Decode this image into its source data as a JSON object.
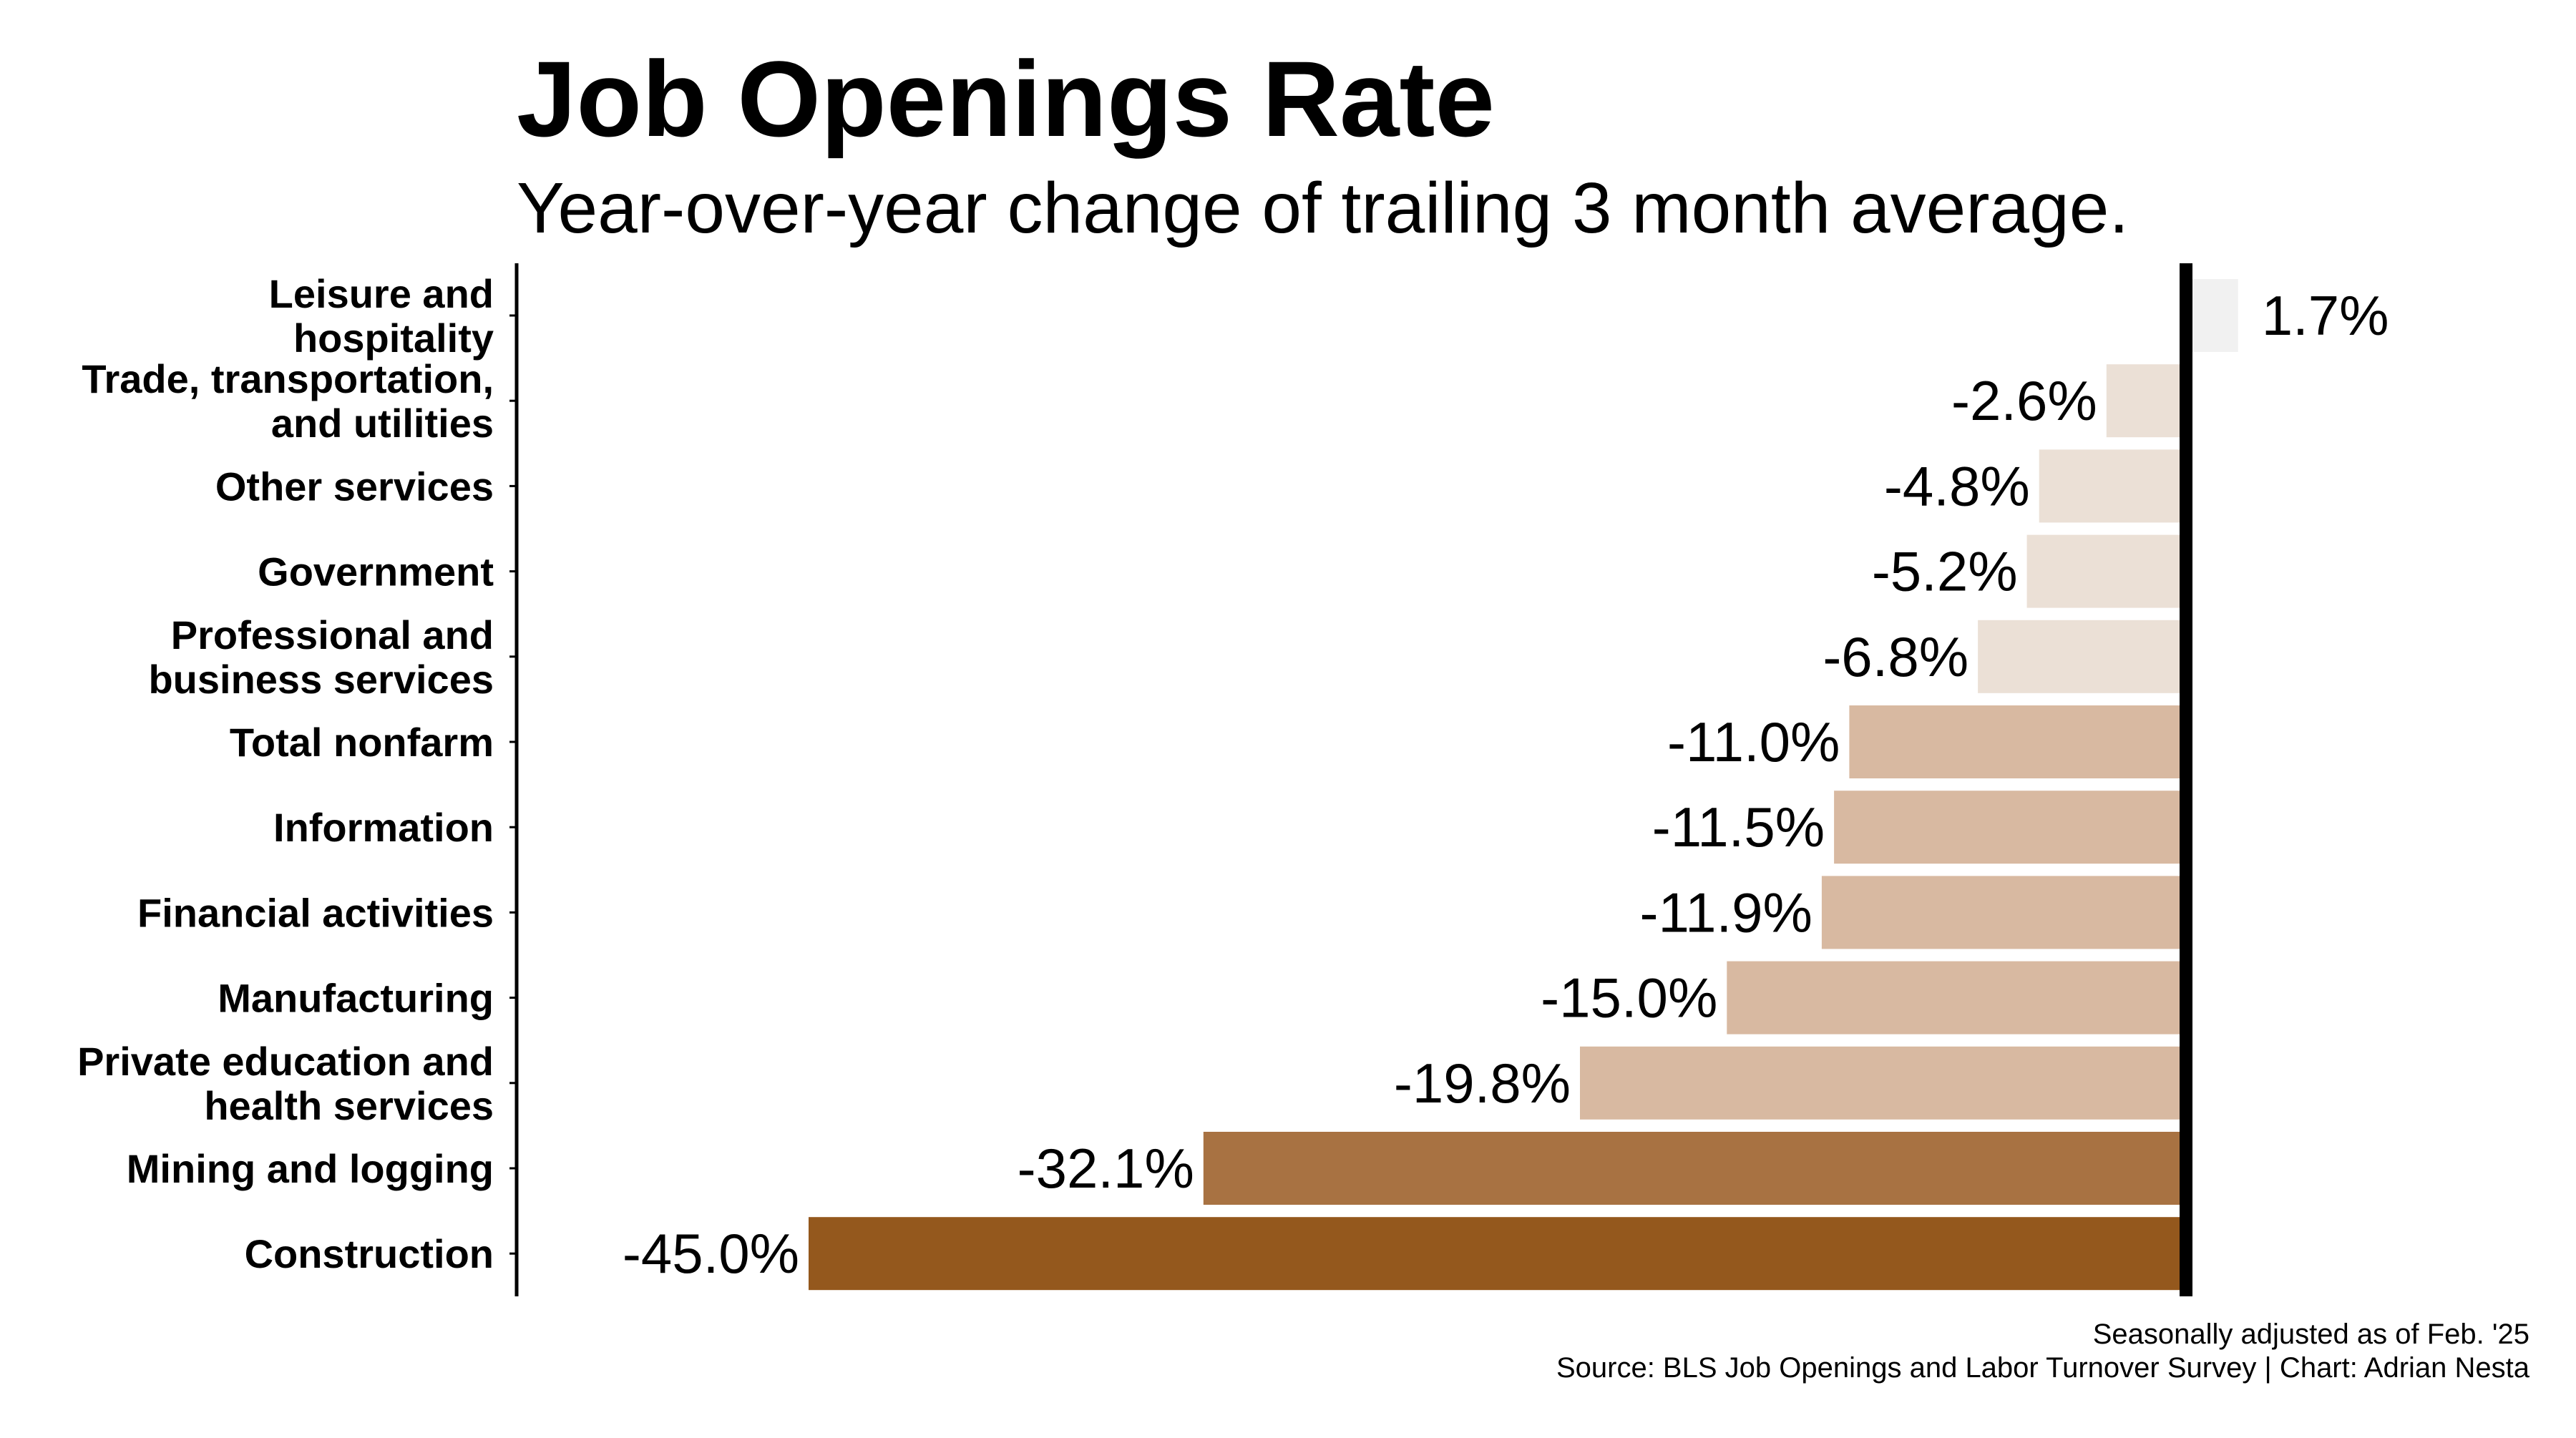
{
  "chart_data": {
    "type": "bar",
    "orientation": "horizontal",
    "title": "Job Openings Rate",
    "subtitle": "Year-over-year change of trailing 3 month average.",
    "categories": [
      [
        "Leisure and",
        "hospitality"
      ],
      [
        "Trade, transportation,",
        "and utilities"
      ],
      [
        "Other services"
      ],
      [
        "Government"
      ],
      [
        "Professional and",
        "business services"
      ],
      [
        "Total nonfarm"
      ],
      [
        "Information"
      ],
      [
        "Financial activities"
      ],
      [
        "Manufacturing"
      ],
      [
        "Private education and",
        "health services"
      ],
      [
        "Mining and logging"
      ],
      [
        "Construction"
      ]
    ],
    "values": [
      1.7,
      -2.6,
      -4.8,
      -5.2,
      -6.8,
      -11.0,
      -11.5,
      -11.9,
      -15.0,
      -19.8,
      -32.1,
      -45.0
    ],
    "value_labels": [
      "1.7%",
      "-2.6%",
      "-4.8%",
      "-5.2%",
      "-6.8%",
      "-11.0%",
      "-11.5%",
      "-11.9%",
      "-15.0%",
      "-19.8%",
      "-32.1%",
      "-45.0%"
    ],
    "bar_colors": [
      "#f1f1f1",
      "#ebe0d6",
      "#ebe0d6",
      "#ebe0d6",
      "#ebe0d6",
      "#d8b9a1",
      "#d8b9a1",
      "#d8b9a1",
      "#d8b9a1",
      "#d8b9a1",
      "#a87242",
      "#94581d"
    ],
    "xlim": [
      -45,
      1.7
    ],
    "grid": false,
    "zero_line_color": "#000000",
    "notes": [
      "Seasonally adjusted as of Feb. '25",
      "Source: BLS Job Openings and Labor Turnover Survey | Chart: Adrian Nesta"
    ]
  }
}
